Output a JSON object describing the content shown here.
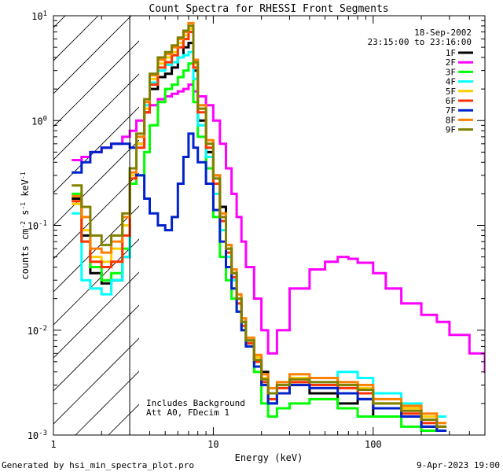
{
  "chart_data": {
    "type": "line",
    "title": "Count Spectra for RHESSI Front Segments",
    "xlabel": "Energy (keV)",
    "ylabel_parts": {
      "base": "counts cm",
      "exp1": "-2",
      "mid": " s",
      "exp2": "-1",
      "unit": " keV",
      "exp3": "-1"
    },
    "x_scale": "log",
    "y_scale": "log",
    "xlim": [
      1,
      500
    ],
    "ylim": [
      0.001,
      10
    ],
    "x_ticks": [
      {
        "value": 1,
        "label": "1"
      },
      {
        "value": 10,
        "label": "10"
      },
      {
        "value": 100,
        "label": "100"
      }
    ],
    "y_ticks": [
      {
        "value": 10,
        "base": "10",
        "exp": "1"
      },
      {
        "value": 1,
        "base": "10",
        "exp": "0"
      },
      {
        "value": 0.1,
        "base": "10",
        "exp": "-1"
      },
      {
        "value": 0.01,
        "base": "10",
        "exp": "-2"
      },
      {
        "value": 0.001,
        "base": "10",
        "exp": "-3"
      }
    ],
    "shaded_region": {
      "x_range": [
        1,
        3
      ],
      "note": "excluded low-energy range"
    },
    "date": "18-Sep-2002",
    "time_range": "23:15:00 to 23:16:00",
    "annotation_lines": [
      "Includes Background",
      "Att A0, FDecim 1"
    ],
    "footer_left": "Generated by hsi_min_spectra_plot.pro",
    "footer_right": "9-Apr-2023 19:00",
    "series": [
      {
        "name": "1F",
        "color": "#000000",
        "x": [
          1.3,
          1.5,
          1.7,
          2,
          2.3,
          2.7,
          3,
          3.3,
          3.7,
          4,
          4.5,
          5,
          5.5,
          6,
          6.5,
          7,
          7.5,
          8,
          9,
          10,
          11,
          12,
          13,
          14,
          15,
          16,
          18,
          20,
          22,
          25,
          30,
          40,
          60,
          80,
          100,
          150,
          200,
          250
        ],
        "y": [
          0.18,
          0.08,
          0.035,
          0.028,
          0.03,
          0.05,
          0.25,
          0.6,
          1.2,
          2.0,
          2.6,
          2.8,
          3.2,
          4.0,
          5.0,
          5.5,
          3.0,
          1.0,
          0.5,
          0.3,
          0.15,
          0.06,
          0.035,
          0.02,
          0.012,
          0.008,
          0.005,
          0.004,
          0.002,
          0.0025,
          0.003,
          0.0025,
          0.002,
          0.0022,
          0.0015,
          0.0015,
          0.0012,
          0.0012
        ]
      },
      {
        "name": "2F",
        "color": "#ff00ff",
        "x": [
          1.3,
          1.5,
          1.7,
          2,
          2.3,
          2.7,
          3,
          3.3,
          3.7,
          4,
          4.5,
          5,
          5.5,
          6,
          6.5,
          7,
          7.5,
          8,
          9,
          10,
          11,
          12,
          13,
          14,
          15,
          16,
          18,
          20,
          22,
          25,
          30,
          40,
          50,
          60,
          70,
          80,
          100,
          120,
          150,
          200,
          250,
          300,
          400,
          500
        ],
        "y": [
          0.42,
          0.45,
          0.5,
          0.55,
          0.6,
          0.7,
          0.8,
          1.0,
          1.2,
          1.4,
          1.6,
          1.7,
          1.8,
          1.9,
          2.0,
          2.2,
          1.9,
          1.7,
          1.4,
          1.0,
          0.6,
          0.35,
          0.2,
          0.12,
          0.07,
          0.04,
          0.02,
          0.01,
          0.006,
          0.01,
          0.025,
          0.038,
          0.045,
          0.05,
          0.048,
          0.044,
          0.035,
          0.025,
          0.018,
          0.014,
          0.012,
          0.009,
          0.006,
          0.004
        ]
      },
      {
        "name": "3F",
        "color": "#00ff00",
        "x": [
          1.3,
          1.5,
          1.7,
          2,
          2.3,
          2.7,
          3,
          3.3,
          3.7,
          4,
          4.5,
          5,
          5.5,
          6,
          6.5,
          7,
          7.5,
          8,
          9,
          10,
          11,
          12,
          13,
          14,
          15,
          16,
          18,
          20,
          22,
          25,
          30,
          40,
          60,
          80,
          100,
          150,
          200,
          250
        ],
        "y": [
          0.2,
          0.07,
          0.04,
          0.03,
          0.035,
          0.06,
          0.25,
          0.3,
          0.5,
          0.9,
          1.5,
          2.0,
          2.2,
          2.6,
          3.0,
          3.5,
          1.5,
          0.7,
          0.35,
          0.12,
          0.05,
          0.03,
          0.02,
          0.015,
          0.01,
          0.007,
          0.004,
          0.002,
          0.0015,
          0.0018,
          0.002,
          0.0022,
          0.0018,
          0.0015,
          0.0015,
          0.0012,
          0.0011,
          0.0011
        ]
      },
      {
        "name": "4F",
        "color": "#00ffff",
        "x": [
          1.3,
          1.5,
          1.7,
          2,
          2.3,
          2.7,
          3,
          3.3,
          3.7,
          4,
          4.5,
          5,
          5.5,
          6,
          6.5,
          7,
          7.5,
          8,
          9,
          10,
          11,
          12,
          13,
          14,
          15,
          16,
          18,
          20,
          22,
          25,
          30,
          40,
          60,
          80,
          100,
          150,
          200,
          250
        ],
        "y": [
          0.13,
          0.03,
          0.025,
          0.022,
          0.03,
          0.05,
          0.3,
          0.7,
          1.4,
          2.3,
          3.0,
          3.4,
          3.6,
          4.0,
          4.2,
          4.5,
          2.5,
          0.9,
          0.45,
          0.2,
          0.09,
          0.05,
          0.03,
          0.02,
          0.012,
          0.008,
          0.005,
          0.003,
          0.002,
          0.003,
          0.0035,
          0.003,
          0.004,
          0.0035,
          0.0025,
          0.002,
          0.0015,
          0.0015
        ]
      },
      {
        "name": "5F",
        "color": "#ffcc00",
        "x": [
          1.3,
          1.5,
          1.7,
          2,
          2.3,
          2.7,
          3,
          3.3,
          3.7,
          4,
          4.5,
          5,
          5.5,
          6,
          6.5,
          7,
          7.5,
          8,
          9,
          10,
          11,
          12,
          13,
          14,
          15,
          16,
          18,
          20,
          22,
          25,
          30,
          40,
          60,
          80,
          100,
          150,
          200,
          250
        ],
        "y": [
          0.16,
          0.09,
          0.05,
          0.045,
          0.06,
          0.1,
          0.3,
          0.6,
          1.3,
          2.5,
          3.5,
          4.0,
          4.5,
          5.5,
          6.5,
          7.5,
          3.5,
          1.3,
          0.6,
          0.28,
          0.12,
          0.06,
          0.035,
          0.02,
          0.012,
          0.008,
          0.0055,
          0.0035,
          0.0025,
          0.003,
          0.0035,
          0.0035,
          0.003,
          0.0028,
          0.002,
          0.0018,
          0.0015,
          0.0012
        ]
      },
      {
        "name": "6F",
        "color": "#ff3300",
        "x": [
          1.3,
          1.5,
          1.7,
          2,
          2.3,
          2.7,
          3,
          3.3,
          3.7,
          4,
          4.5,
          5,
          5.5,
          6,
          6.5,
          7,
          7.5,
          8,
          9,
          10,
          11,
          12,
          13,
          14,
          15,
          16,
          18,
          20,
          22,
          25,
          30,
          40,
          60,
          80,
          100,
          150,
          200,
          250
        ],
        "y": [
          0.17,
          0.07,
          0.045,
          0.04,
          0.045,
          0.08,
          0.28,
          0.55,
          1.2,
          2.2,
          3.2,
          3.6,
          4.2,
          5.0,
          6.0,
          7.0,
          3.2,
          1.2,
          0.55,
          0.25,
          0.11,
          0.055,
          0.032,
          0.018,
          0.011,
          0.0075,
          0.005,
          0.0032,
          0.0022,
          0.0028,
          0.0032,
          0.003,
          0.0028,
          0.0025,
          0.0018,
          0.0016,
          0.0013,
          0.0011
        ]
      },
      {
        "name": "7F",
        "color": "#0022cc",
        "x": [
          1.3,
          1.5,
          1.7,
          2,
          2.3,
          2.7,
          3,
          3.3,
          3.7,
          4,
          4.5,
          5,
          5.5,
          6,
          6.5,
          7,
          7.5,
          8,
          9,
          10,
          11,
          12,
          13,
          14,
          15,
          16,
          18,
          20,
          22,
          25,
          30,
          40,
          60,
          80,
          100,
          150,
          200,
          250
        ],
        "y": [
          0.32,
          0.4,
          0.5,
          0.55,
          0.6,
          0.6,
          0.55,
          0.3,
          0.18,
          0.13,
          0.1,
          0.09,
          0.12,
          0.25,
          0.45,
          0.75,
          0.55,
          0.4,
          0.25,
          0.14,
          0.07,
          0.04,
          0.025,
          0.015,
          0.01,
          0.007,
          0.0045,
          0.003,
          0.002,
          0.0025,
          0.003,
          0.0028,
          0.0025,
          0.0022,
          0.0018,
          0.0015,
          0.0012,
          0.0011
        ]
      },
      {
        "name": "8F",
        "color": "#ff8000",
        "x": [
          1.3,
          1.5,
          1.7,
          2,
          2.3,
          2.7,
          3,
          3.3,
          3.7,
          4,
          4.5,
          5,
          5.5,
          6,
          6.5,
          7,
          7.5,
          8,
          9,
          10,
          11,
          12,
          13,
          14,
          15,
          16,
          18,
          20,
          22,
          25,
          30,
          40,
          60,
          80,
          100,
          150,
          200,
          250
        ],
        "y": [
          0.19,
          0.12,
          0.06,
          0.055,
          0.07,
          0.12,
          0.32,
          0.7,
          1.5,
          2.7,
          3.8,
          4.3,
          5.0,
          6.0,
          7.0,
          8.5,
          3.8,
          1.4,
          0.65,
          0.3,
          0.13,
          0.065,
          0.038,
          0.022,
          0.013,
          0.0085,
          0.0058,
          0.0038,
          0.0028,
          0.0032,
          0.0038,
          0.0035,
          0.0032,
          0.003,
          0.0022,
          0.0019,
          0.0016,
          0.0013
        ]
      },
      {
        "name": "9F",
        "color": "#808000",
        "x": [
          1.3,
          1.5,
          1.7,
          2,
          2.3,
          2.7,
          3,
          3.3,
          3.7,
          4,
          4.5,
          5,
          5.5,
          6,
          6.5,
          7,
          7.5,
          8,
          9,
          10,
          11,
          12,
          13,
          14,
          15,
          16,
          18,
          20,
          22,
          25,
          30,
          40,
          60,
          80,
          100,
          150,
          200,
          250
        ],
        "y": [
          0.24,
          0.15,
          0.08,
          0.065,
          0.08,
          0.13,
          0.35,
          0.75,
          1.6,
          2.8,
          4.0,
          4.5,
          5.2,
          6.2,
          7.2,
          8.0,
          3.6,
          1.3,
          0.6,
          0.28,
          0.12,
          0.06,
          0.035,
          0.02,
          0.012,
          0.008,
          0.0052,
          0.0034,
          0.0025,
          0.003,
          0.0034,
          0.0032,
          0.003,
          0.0027,
          0.002,
          0.0017,
          0.0014,
          0.0012
        ]
      }
    ]
  }
}
